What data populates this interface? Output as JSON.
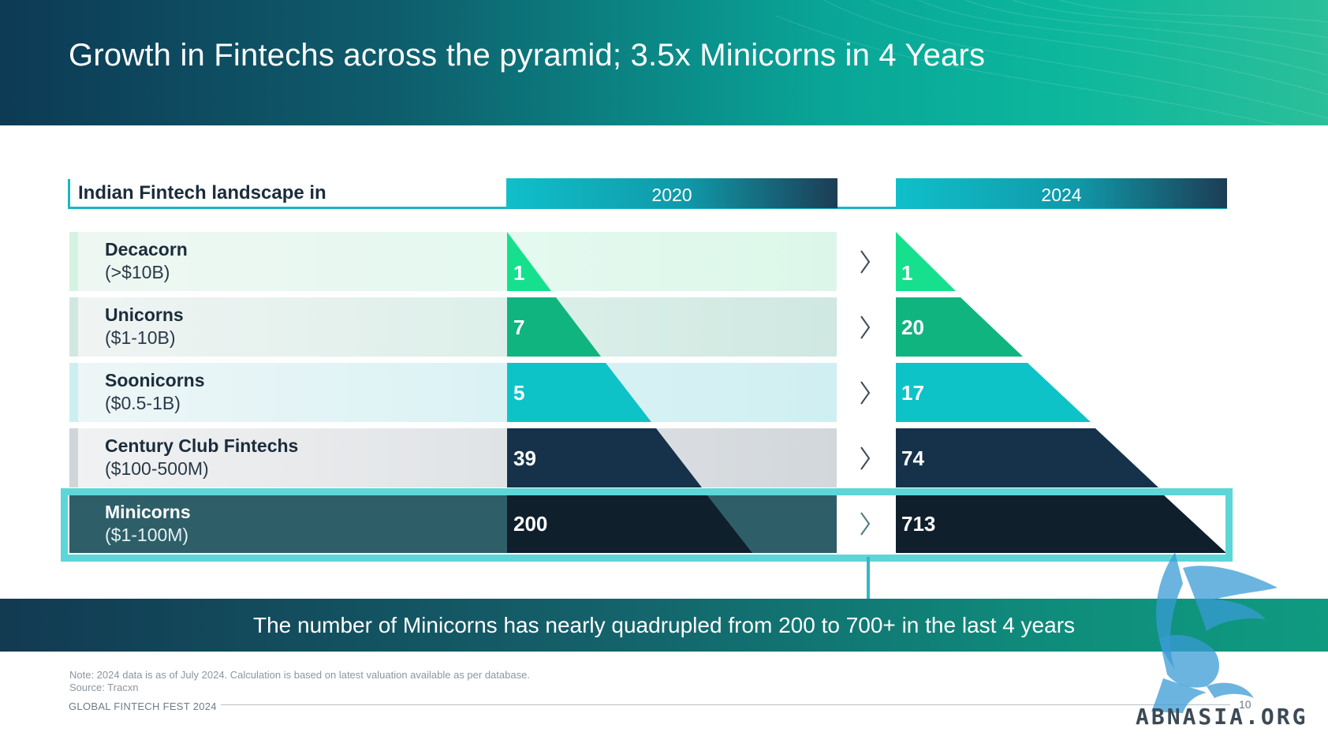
{
  "header": {
    "title": "Growth in Fintechs across the pyramid; 3.5x Minicorns in 4 Years"
  },
  "table": {
    "landscape_label": "Indian Fintech landscape in",
    "years": [
      "2020",
      "2024"
    ],
    "rows": [
      {
        "name": "Decacorn",
        "range": "(>$10B)",
        "value_2020": "1",
        "value_2024": "1"
      },
      {
        "name": "Unicorns",
        "range": "($1-10B)",
        "value_2020": "7",
        "value_2024": "20"
      },
      {
        "name": "Soonicorns",
        "range": "($0.5-1B)",
        "value_2020": "5",
        "value_2024": "17"
      },
      {
        "name": "Century Club Fintechs",
        "range": "($100-500M)",
        "value_2020": "39",
        "value_2024": "74"
      },
      {
        "name": "Minicorns",
        "range": "($1-100M)",
        "value_2020": "200",
        "value_2024": "713"
      }
    ]
  },
  "banner": {
    "text": "The number of Minicorns has nearly quadrupled from 200 to 700+ in the last 4 years"
  },
  "footer": {
    "note": "Note: 2024 data is as of July 2024. Calculation is based on latest valuation available as per database.",
    "source": "Source: Tracxn",
    "brand": "GLOBAL FINTECH FEST 2024",
    "page_number": "10"
  },
  "watermark": {
    "text": "ABNASIA.ORG"
  },
  "colors": {
    "decacorn": "#16e08d",
    "unicorns": "#10b47f",
    "soonicorns": "#0ec3c8",
    "century": "#16324a",
    "minicorns": "#0f1f2c",
    "highlight_border": "#5dd6d8",
    "row_backgrounds": [
      "#e2f8ee",
      "#d4ece5",
      "#d5f1f3",
      "#d6dadd",
      "#2e5f69"
    ]
  }
}
